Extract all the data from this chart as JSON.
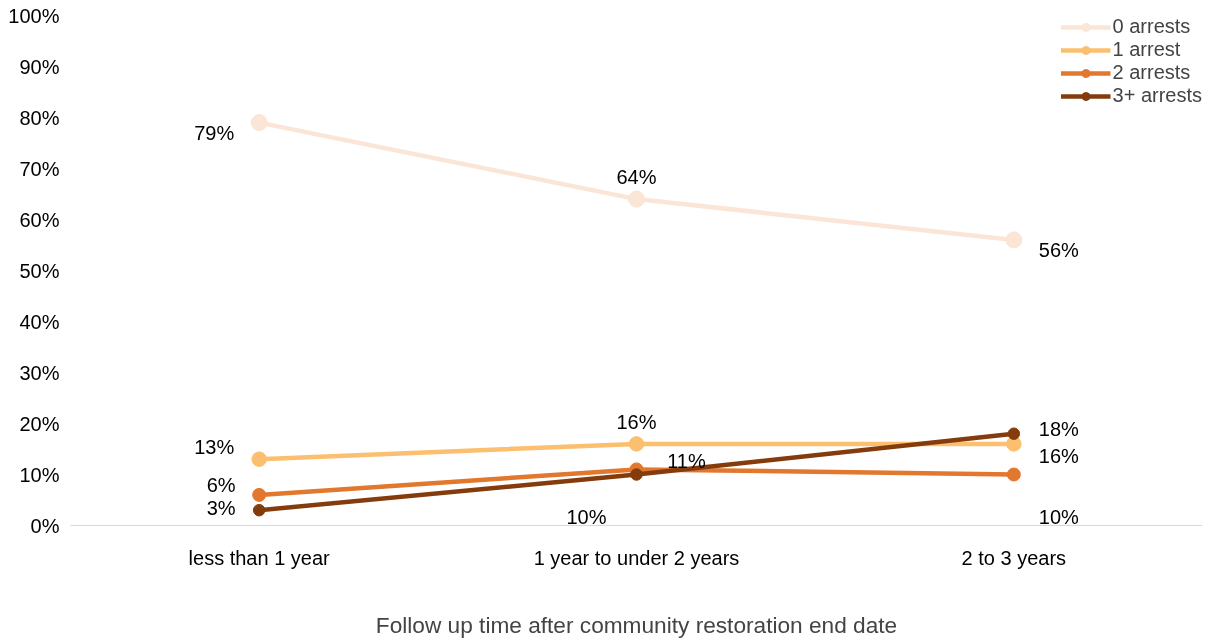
{
  "chart_data": {
    "type": "line",
    "xlabel": "Follow up time after community restoration end date",
    "categories": [
      "less than 1 year",
      "1 year to under 2 years",
      "2 to 3 years"
    ],
    "series": [
      {
        "name": "0 arrests",
        "color": "#fbe5d6",
        "values": [
          79,
          64,
          56
        ]
      },
      {
        "name": "1 arrest",
        "color": "#fbbf6f",
        "values": [
          13,
          16,
          16
        ]
      },
      {
        "name": "2 arrests",
        "color": "#e2772e",
        "values": [
          6,
          11,
          10
        ]
      },
      {
        "name": "3+ arrests",
        "color": "#843c0c",
        "values": [
          3,
          10,
          18
        ]
      }
    ],
    "ylim": [
      0,
      100
    ],
    "yticks": [
      {
        "value": 0,
        "label": "0%"
      },
      {
        "value": 10,
        "label": "10%"
      },
      {
        "value": 20,
        "label": "20%"
      },
      {
        "value": 30,
        "label": "30%"
      },
      {
        "value": 40,
        "label": "40%"
      },
      {
        "value": 50,
        "label": "50%"
      },
      {
        "value": 60,
        "label": "60%"
      },
      {
        "value": 70,
        "label": "70%"
      },
      {
        "value": 80,
        "label": "80%"
      },
      {
        "value": 90,
        "label": "90%"
      },
      {
        "value": 100,
        "label": "100%"
      }
    ],
    "value_labels": [
      [
        "79%",
        "64%",
        "56%"
      ],
      [
        "13%",
        "16%",
        "16%"
      ],
      [
        "6%",
        "11%",
        "10%"
      ],
      [
        "3%",
        "10%",
        "18%"
      ]
    ],
    "grid": false,
    "legend": "top right",
    "marker": "circle",
    "line_style": "solid"
  }
}
